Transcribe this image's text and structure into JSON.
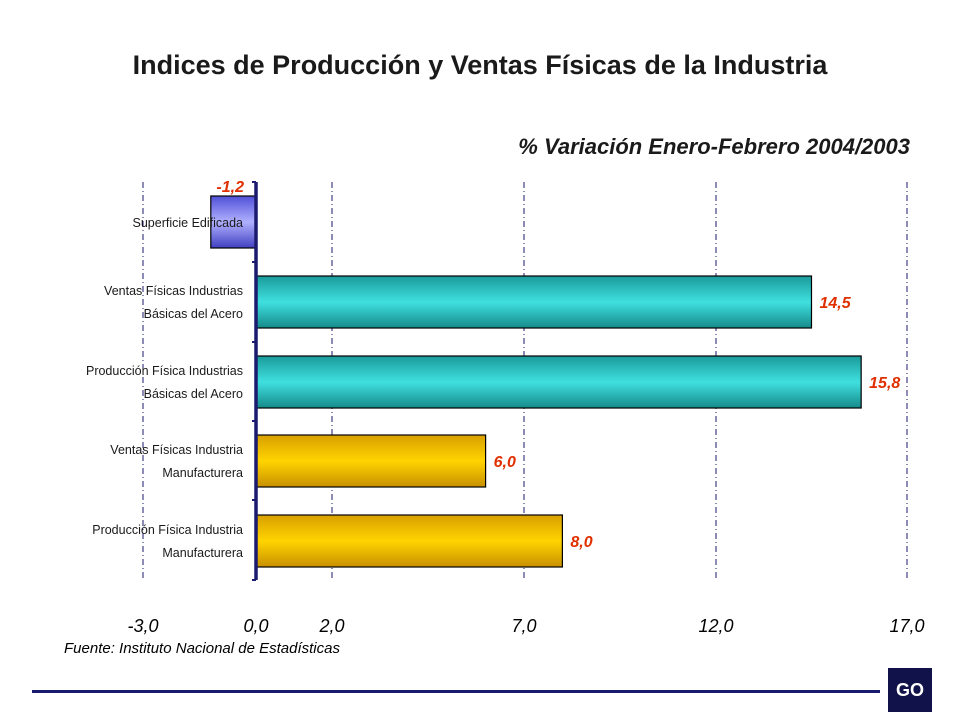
{
  "title": "Indices de Producción y Ventas Físicas de la Industria",
  "subtitle": "% Variación Enero-Febrero 2004/2003",
  "source": "Fuente: Instituto Nacional de Estadísticas",
  "logo_text": "GO",
  "colors": {
    "negative_bar": "#7b7bff",
    "steel_bar": "#33cccc",
    "manufacturing_bar": "#ffcc00",
    "value_label": "#e03000",
    "axis": "#1a1a6e"
  },
  "chart_data": {
    "type": "bar",
    "orientation": "horizontal",
    "categories": [
      [
        "Superficie Edificada"
      ],
      [
        "Ventas Físicas Industrias",
        "Básicas del Acero"
      ],
      [
        "Producción Física Industrias",
        "Básicas del Acero"
      ],
      [
        "Ventas Físicas Industria",
        "Manufacturera"
      ],
      [
        "Producción Física Industria",
        "Manufacturera"
      ]
    ],
    "values": [
      -1.2,
      14.5,
      15.8,
      6.0,
      8.0
    ],
    "value_labels": [
      "-1,2",
      "14,5",
      "15,8",
      "6,0",
      "8,0"
    ],
    "bar_colors": [
      "#7b7bff",
      "#33cccc",
      "#33cccc",
      "#ffcc00",
      "#ffcc00"
    ],
    "xticks": [
      -3.0,
      0.0,
      2.0,
      7.0,
      12.0,
      17.0
    ],
    "xtick_labels": [
      "-3,0",
      "0,0",
      "2,0",
      "7,0",
      "12,0",
      "17,0"
    ],
    "xlim": [
      -3.0,
      17.0
    ],
    "grid": "vertical dash-dot at ticks"
  }
}
